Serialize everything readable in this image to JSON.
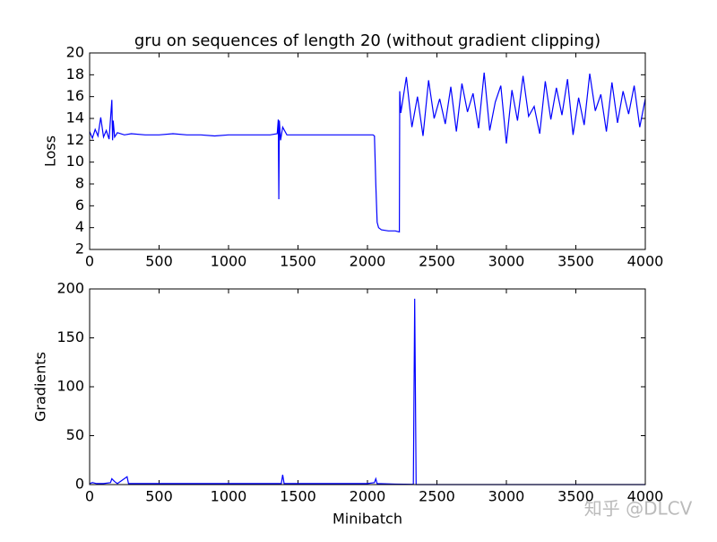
{
  "chart_data": [
    {
      "type": "line",
      "title": "gru on sequences of length 20 (without gradient clipping)",
      "ylabel": "Loss",
      "color": "#0000ff",
      "xlim": [
        0,
        4000
      ],
      "xticks": [
        0,
        500,
        1000,
        1500,
        2000,
        2500,
        3000,
        3500,
        4000
      ],
      "ylim": [
        2,
        20
      ],
      "yticks": [
        2,
        4,
        6,
        8,
        10,
        12,
        14,
        16,
        18,
        20
      ],
      "x": [
        0,
        20,
        40,
        60,
        80,
        100,
        120,
        140,
        160,
        165,
        170,
        180,
        200,
        250,
        300,
        400,
        500,
        600,
        700,
        800,
        900,
        1000,
        1100,
        1200,
        1300,
        1350,
        1358,
        1362,
        1366,
        1375,
        1390,
        1420,
        1500,
        1600,
        1700,
        1800,
        1900,
        2000,
        2040,
        2050,
        2060,
        2070,
        2080,
        2100,
        2150,
        2200,
        2230,
        2232,
        2240,
        2280,
        2320,
        2360,
        2400,
        2440,
        2480,
        2520,
        2560,
        2600,
        2640,
        2680,
        2720,
        2760,
        2800,
        2840,
        2880,
        2920,
        2960,
        3000,
        3040,
        3080,
        3120,
        3160,
        3200,
        3240,
        3280,
        3320,
        3360,
        3400,
        3440,
        3480,
        3520,
        3560,
        3600,
        3640,
        3680,
        3720,
        3760,
        3800,
        3840,
        3880,
        3920,
        3960,
        4000
      ],
      "values": [
        12.8,
        12.2,
        13.0,
        12.4,
        14.1,
        12.3,
        12.9,
        12.1,
        15.7,
        12.0,
        13.8,
        12.3,
        12.7,
        12.5,
        12.6,
        12.5,
        12.5,
        12.6,
        12.5,
        12.5,
        12.4,
        12.5,
        12.5,
        12.5,
        12.5,
        12.6,
        13.9,
        6.6,
        13.8,
        12.0,
        13.2,
        12.5,
        12.5,
        12.5,
        12.5,
        12.5,
        12.5,
        12.5,
        12.5,
        12.4,
        8.0,
        4.5,
        4.0,
        3.8,
        3.7,
        3.7,
        3.6,
        16.5,
        14.5,
        17.8,
        13.2,
        16.0,
        12.4,
        17.5,
        14.0,
        15.8,
        13.5,
        16.9,
        12.8,
        17.2,
        14.6,
        16.3,
        13.1,
        18.2,
        12.9,
        15.5,
        17.0,
        11.7,
        16.6,
        13.8,
        17.9,
        14.2,
        15.1,
        12.6,
        17.4,
        13.9,
        16.8,
        14.3,
        17.6,
        12.5,
        15.9,
        13.4,
        18.1,
        14.7,
        16.2,
        12.8,
        17.3,
        13.6,
        16.5,
        14.4,
        17.0,
        13.2,
        15.8
      ]
    },
    {
      "type": "line",
      "ylabel": "Gradients",
      "xlabel": "Minibatch",
      "color": "#0000ff",
      "xlim": [
        0,
        4000
      ],
      "xticks": [
        0,
        500,
        1000,
        1500,
        2000,
        2500,
        3000,
        3500,
        4000
      ],
      "ylim": [
        0,
        200
      ],
      "yticks": [
        0,
        50,
        100,
        150,
        200
      ],
      "x": [
        0,
        20,
        50,
        100,
        150,
        160,
        180,
        200,
        270,
        280,
        400,
        600,
        800,
        1000,
        1200,
        1380,
        1390,
        1400,
        1600,
        1800,
        2000,
        2050,
        2060,
        2070,
        2200,
        2330,
        2340,
        2350,
        2500,
        3000,
        3500,
        4000
      ],
      "values": [
        1,
        2,
        1,
        1,
        2,
        6,
        3,
        1,
        8,
        1,
        1,
        1,
        1,
        1,
        1,
        1,
        10,
        1,
        1,
        1,
        1,
        2,
        6,
        1,
        0.5,
        0.3,
        190,
        0,
        0,
        0,
        0,
        0
      ]
    }
  ],
  "watermark": "知乎 @DLCV"
}
